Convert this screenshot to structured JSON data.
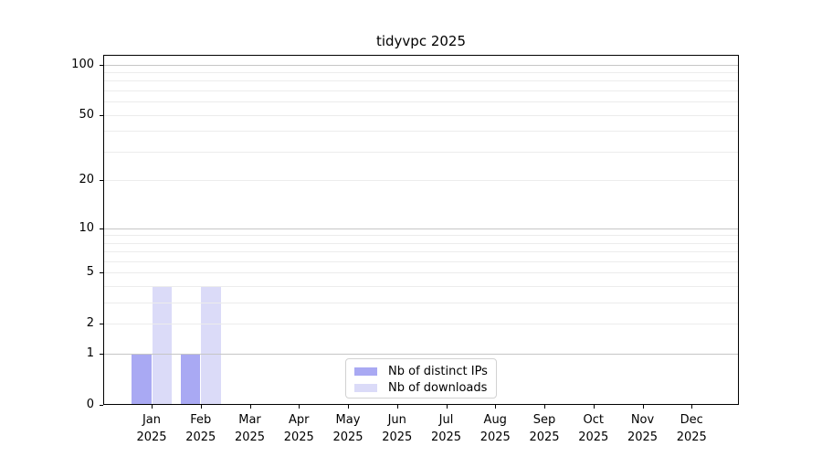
{
  "figure": {
    "title": "tidyvpc 2025"
  },
  "chart_data": {
    "type": "bar",
    "title": "tidyvpc 2025",
    "categories": [
      "Jan 2025",
      "Feb 2025",
      "Mar 2025",
      "Apr 2025",
      "May 2025",
      "Jun 2025",
      "Jul 2025",
      "Aug 2025",
      "Sep 2025",
      "Oct 2025",
      "Nov 2025",
      "Dec 2025"
    ],
    "x_tick_line1": [
      "Jan",
      "Feb",
      "Mar",
      "Apr",
      "May",
      "Jun",
      "Jul",
      "Aug",
      "Sep",
      "Oct",
      "Nov",
      "Dec"
    ],
    "x_tick_line2": "2025",
    "series": [
      {
        "name": "Nb of distinct IPs",
        "color": "#a9a9f3",
        "values": [
          1,
          1,
          0,
          0,
          0,
          0,
          0,
          0,
          0,
          0,
          0,
          0
        ]
      },
      {
        "name": "Nb of downloads",
        "color": "#dbdbf8",
        "values": [
          4,
          4,
          0,
          0,
          0,
          0,
          0,
          0,
          0,
          0,
          0,
          0
        ]
      }
    ],
    "y_scale": "log1p",
    "ylim": [
      0,
      114
    ],
    "y_ticks": [
      0,
      1,
      2,
      5,
      10,
      20,
      50,
      100
    ],
    "y_gridlines_major": [
      1,
      10,
      100
    ],
    "y_gridlines_minor": [
      2,
      3,
      4,
      5,
      6,
      7,
      8,
      9,
      20,
      30,
      40,
      50,
      60,
      70,
      80,
      90
    ],
    "grid": true,
    "legend": {
      "position": "lower center",
      "entries": [
        "Nb of distinct IPs",
        "Nb of downloads"
      ]
    },
    "colors": {
      "grid_major": "#c6c6c6",
      "grid_minor": "#ececec",
      "spine": "#000000",
      "text": "#000000",
      "background": "#ffffff"
    }
  }
}
